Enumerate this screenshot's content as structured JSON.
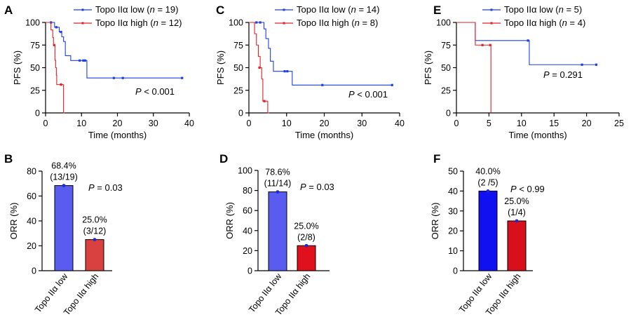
{
  "colors": {
    "low_line": "#1f3fe0",
    "high_line": "#e0202a"
  },
  "chart_data": [
    {
      "panel": "A",
      "type": "line",
      "xlabel": "Time (months)",
      "ylabel": "PFS (%)",
      "xlim": [
        0,
        40
      ],
      "ylim": [
        0,
        100
      ],
      "xticks": [
        "0",
        "10",
        "20",
        "30",
        "40"
      ],
      "yticks": [
        "0",
        "25",
        "50",
        "75",
        "100"
      ],
      "pvalue_label": "P < 0.001",
      "series": [
        {
          "name": "Topo IIα low (n = 19)",
          "color": "#1f3fe0",
          "steps": [
            [
              0,
              100
            ],
            [
              2.5,
              94.7
            ],
            [
              3.8,
              89.5
            ],
            [
              4.5,
              84.2
            ],
            [
              5,
              78.9
            ],
            [
              5.5,
              63.2
            ],
            [
              7,
              57.9
            ],
            [
              11.5,
              38.6
            ],
            [
              38,
              38.6
            ]
          ],
          "censors": [
            [
              1.5,
              100
            ],
            [
              3,
              94.7
            ],
            [
              4.3,
              89.5
            ],
            [
              9.5,
              57.9
            ],
            [
              10.5,
              57.9
            ],
            [
              11,
              57.9
            ],
            [
              19,
              38.6
            ],
            [
              21.5,
              38.6
            ],
            [
              38,
              38.6
            ]
          ]
        },
        {
          "name": "Topo IIα high (n = 12)",
          "color": "#e0202a",
          "steps": [
            [
              0,
              100
            ],
            [
              1.5,
              91.7
            ],
            [
              2,
              83.3
            ],
            [
              2.2,
              75
            ],
            [
              2.6,
              58.3
            ],
            [
              2.8,
              50
            ],
            [
              3,
              41.7
            ],
            [
              3.1,
              31.3
            ],
            [
              5,
              0
            ],
            [
              5.3,
              0
            ]
          ],
          "censors": [
            [
              2.4,
              75
            ],
            [
              4.3,
              31.3
            ]
          ]
        }
      ]
    },
    {
      "panel": "C",
      "type": "line",
      "xlabel": "Time (months)",
      "ylabel": "PFS (%)",
      "xlim": [
        0,
        40
      ],
      "ylim": [
        0,
        100
      ],
      "xticks": [
        "0",
        "10",
        "20",
        "30",
        "40"
      ],
      "yticks": [
        "0",
        "25",
        "50",
        "75",
        "100"
      ],
      "pvalue_label": "P < 0.001",
      "series": [
        {
          "name": "Topo IIα low (n = 14)",
          "color": "#1f3fe0",
          "steps": [
            [
              0,
              100
            ],
            [
              4,
              92.9
            ],
            [
              4.5,
              82.1
            ],
            [
              5.2,
              71.4
            ],
            [
              5.7,
              57.1
            ],
            [
              6.5,
              46
            ],
            [
              10.5,
              46
            ],
            [
              11.5,
              30.8
            ],
            [
              38,
              30.8
            ]
          ],
          "censors": [
            [
              2,
              100
            ],
            [
              3,
              100
            ],
            [
              9.5,
              46
            ],
            [
              10.2,
              46
            ],
            [
              19.5,
              30.8
            ],
            [
              38,
              30.8
            ]
          ]
        },
        {
          "name": "Topo IIα high (n = 8)",
          "color": "#e0202a",
          "steps": [
            [
              0,
              100
            ],
            [
              1.5,
              87.5
            ],
            [
              2,
              75
            ],
            [
              2.5,
              62.5
            ],
            [
              3,
              50
            ],
            [
              3.4,
              37.5
            ],
            [
              3.7,
              13
            ],
            [
              5,
              0
            ],
            [
              5.4,
              0
            ]
          ],
          "censors": [
            [
              2.8,
              50
            ],
            [
              4.1,
              13
            ]
          ]
        }
      ]
    },
    {
      "panel": "E",
      "type": "line",
      "xlabel": "Time (months)",
      "ylabel": "PFS (%)",
      "xlim": [
        0,
        25
      ],
      "ylim": [
        0,
        100
      ],
      "xticks": [
        "0",
        "5",
        "10",
        "15",
        "20",
        "25"
      ],
      "yticks": [
        "0",
        "25",
        "50",
        "75",
        "100"
      ],
      "pvalue_label": "P = 0.291",
      "series": [
        {
          "name": "Topo IIα low (n = 5)",
          "color": "#1f3fe0",
          "steps": [
            [
              0,
              100
            ],
            [
              2.9,
              80
            ],
            [
              11.2,
              53.3
            ],
            [
              21.5,
              53.3
            ]
          ],
          "censors": [
            [
              11,
              80
            ],
            [
              19.3,
              53.3
            ],
            [
              21.5,
              53.3
            ]
          ]
        },
        {
          "name": "Topo IIα high (n = 4)",
          "color": "#e0202a",
          "steps": [
            [
              0,
              100
            ],
            [
              2.9,
              75
            ],
            [
              5.3,
              0
            ]
          ],
          "censors": [
            [
              4,
              75
            ],
            [
              5.2,
              75
            ]
          ]
        }
      ]
    },
    {
      "panel": "B",
      "type": "bar",
      "ylabel": "ORR (%)",
      "ylim": [
        0,
        80
      ],
      "yticks": [
        "0",
        "20",
        "40",
        "60",
        "80"
      ],
      "categories": [
        "Topo IIα low",
        "Topo IIα high"
      ],
      "values": [
        68.4,
        25.0
      ],
      "colors": [
        "#5a5cf0",
        "#d94040"
      ],
      "value_labels": [
        "68.4%",
        "25.0%"
      ],
      "fraction_labels": [
        "(13/19)",
        "(3/12)"
      ],
      "pvalue_label": "P = 0.03"
    },
    {
      "panel": "D",
      "type": "bar",
      "ylabel": "ORR (%)",
      "ylim": [
        0,
        100
      ],
      "yticks": [
        "0",
        "20",
        "40",
        "60",
        "80",
        "100"
      ],
      "categories": [
        "Topo IIα low",
        "Topo IIα high"
      ],
      "values": [
        78.6,
        25.0
      ],
      "colors": [
        "#5a5cf0",
        "#e0101c"
      ],
      "value_labels": [
        "78.6%",
        "25.0%"
      ],
      "fraction_labels": [
        "(11/14)",
        "(2/8)"
      ],
      "pvalue_label": "P = 0.03"
    },
    {
      "panel": "F",
      "type": "bar",
      "ylabel": "ORR (%)",
      "ylim": [
        0,
        50
      ],
      "yticks": [
        "0",
        "10",
        "20",
        "30",
        "40",
        "50"
      ],
      "categories": [
        "Topo IIα low",
        "Topo IIα high"
      ],
      "values": [
        40.0,
        25.0
      ],
      "colors": [
        "#1010f0",
        "#d8101c"
      ],
      "value_labels": [
        "40.0%",
        "25.0%"
      ],
      "fraction_labels": [
        "(2 /5)",
        "(1/4)"
      ],
      "pvalue_label": "P < 0.99"
    }
  ]
}
